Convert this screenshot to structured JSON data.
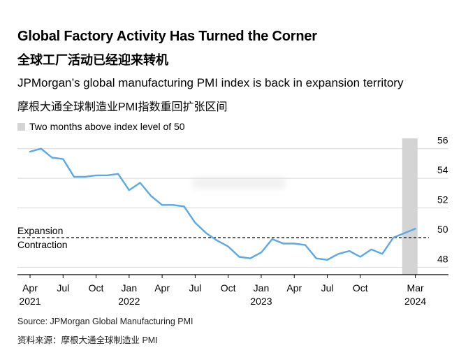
{
  "title": "Global Factory Activity Has Turned the Corner",
  "title_cn": "全球工厂活动已经迎来转机",
  "subtitle": "JPMorgan’s global manufacturing PMI index is back in expansion territory",
  "subtitle_cn": "摩根大通全球制造业PMI指数重回扩张区间",
  "source": "Source: JPMorgan Global Manufacturing PMI",
  "source_cn": "资料来源：摩根大通全球制造业 PMI",
  "chart_data": {
    "type": "line",
    "legend": [
      {
        "label": "Two months above index level of 50",
        "color": "#d4d4d4"
      }
    ],
    "x": [
      "2021-04",
      "2021-05",
      "2021-06",
      "2021-07",
      "2021-08",
      "2021-09",
      "2021-10",
      "2021-11",
      "2021-12",
      "2022-01",
      "2022-02",
      "2022-03",
      "2022-04",
      "2022-05",
      "2022-06",
      "2022-07",
      "2022-08",
      "2022-09",
      "2022-10",
      "2022-11",
      "2022-12",
      "2023-01",
      "2023-02",
      "2023-03",
      "2023-04",
      "2023-05",
      "2023-06",
      "2023-07",
      "2023-08",
      "2023-09",
      "2023-10",
      "2023-11",
      "2023-12",
      "2024-01",
      "2024-02",
      "2024-03"
    ],
    "series": [
      {
        "color": "#5aa9e6",
        "values": [
          55.8,
          56.0,
          55.4,
          55.3,
          54.1,
          54.1,
          54.2,
          54.2,
          54.3,
          53.2,
          53.7,
          52.8,
          52.2,
          52.2,
          52.1,
          51.0,
          50.3,
          49.8,
          49.4,
          48.7,
          48.6,
          49.0,
          49.9,
          49.6,
          49.6,
          49.5,
          48.6,
          48.5,
          48.9,
          49.1,
          48.7,
          49.2,
          48.9,
          50.0,
          50.3,
          50.6
        ]
      }
    ],
    "x_ticks": [
      {
        "date": "2021-04",
        "label": "Apr",
        "year": "2021"
      },
      {
        "date": "2021-07",
        "label": "Jul",
        "year": ""
      },
      {
        "date": "2021-10",
        "label": "Oct",
        "year": ""
      },
      {
        "date": "2022-01",
        "label": "Jan",
        "year": "2022"
      },
      {
        "date": "2022-04",
        "label": "Apr",
        "year": ""
      },
      {
        "date": "2022-07",
        "label": "Jul",
        "year": ""
      },
      {
        "date": "2022-10",
        "label": "Oct",
        "year": ""
      },
      {
        "date": "2023-01",
        "label": "Jan",
        "year": "2023"
      },
      {
        "date": "2023-04",
        "label": "Apr",
        "year": ""
      },
      {
        "date": "2023-07",
        "label": "Jul",
        "year": ""
      },
      {
        "date": "2023-10",
        "label": "Oct",
        "year": ""
      },
      {
        "date": "2024-03",
        "label": "Mar",
        "year": "2024"
      }
    ],
    "y_ticks": [
      48,
      50,
      52,
      54,
      56
    ],
    "ylim": [
      47.5,
      56.6
    ],
    "y_axis_side": "right",
    "grid": true,
    "shaded_range": [
      "2024-02",
      "2024-03"
    ],
    "reference_line": {
      "y": 50,
      "label_above": "Expansion",
      "label_below": "Contraction"
    }
  }
}
